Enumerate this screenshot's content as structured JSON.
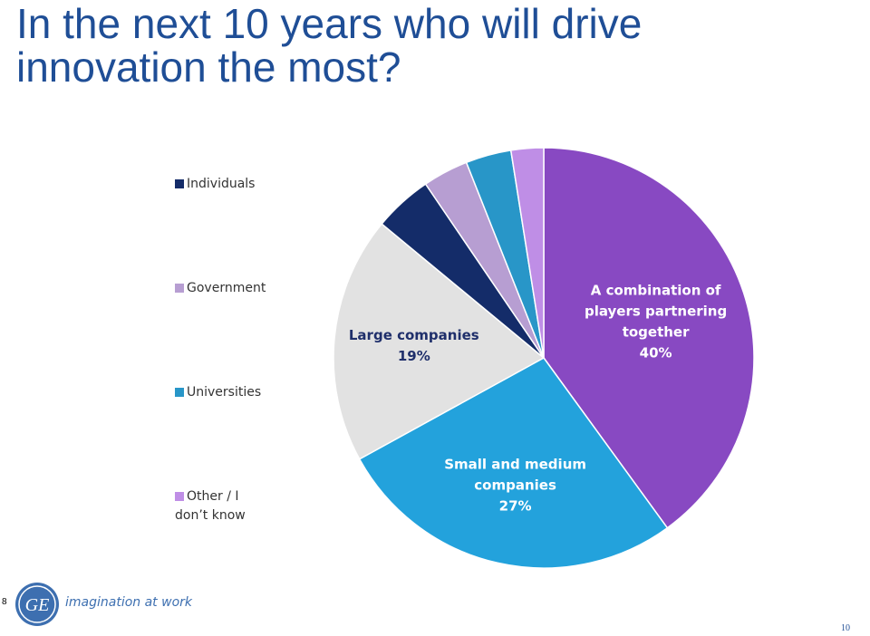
{
  "title_lines": [
    "In the next 10 years who will drive",
    "innovation the most?"
  ],
  "footer": {
    "slide_tag": "8",
    "logo_text": "GE",
    "tagline": "imagination at work",
    "page_number": "10"
  },
  "chart_data": {
    "type": "pie",
    "title": "In the next 10 years who will drive innovation the most?",
    "start": "12 o'clock, clockwise",
    "legend_position": "left",
    "slices": [
      {
        "name": "A combination of players partnering together",
        "value": 40,
        "color": "#8849c2",
        "label_lines": [
          "A combination of",
          "players partnering",
          "together",
          "40%"
        ],
        "label_color": "#ffffff"
      },
      {
        "name": "Small and medium companies",
        "value": 27,
        "color": "#23a2dc",
        "label_lines": [
          "Small and medium",
          "companies",
          "27%"
        ],
        "label_color": "#ffffff"
      },
      {
        "name": "Large companies",
        "value": 19,
        "color": "#e2e2e2",
        "label_lines": [
          "Large companies",
          "19%"
        ],
        "label_color": "#1f2f6b"
      },
      {
        "name": "Individuals",
        "value": 4.5,
        "color": "#142c69",
        "label_lines": [],
        "label_color": "#ffffff"
      },
      {
        "name": "Government",
        "value": 3.5,
        "color": "#b79ed2",
        "label_lines": [],
        "label_color": "#ffffff"
      },
      {
        "name": "Universities",
        "value": 3.5,
        "color": "#2896c8",
        "label_lines": [],
        "label_color": "#ffffff"
      },
      {
        "name": "Other / I don't know",
        "value": 2.5,
        "color": "#bf8ee6",
        "label_lines": [],
        "label_color": "#ffffff"
      }
    ],
    "legend": [
      {
        "lines": [
          "Individuals"
        ],
        "color": "#142c69"
      },
      {
        "lines": [
          "Government"
        ],
        "color": "#b79ed2"
      },
      {
        "lines": [
          "Universities"
        ],
        "color": "#2896c8"
      },
      {
        "lines": [
          "Other / I",
          "don’t know"
        ],
        "color": "#bf8ee6"
      }
    ]
  }
}
